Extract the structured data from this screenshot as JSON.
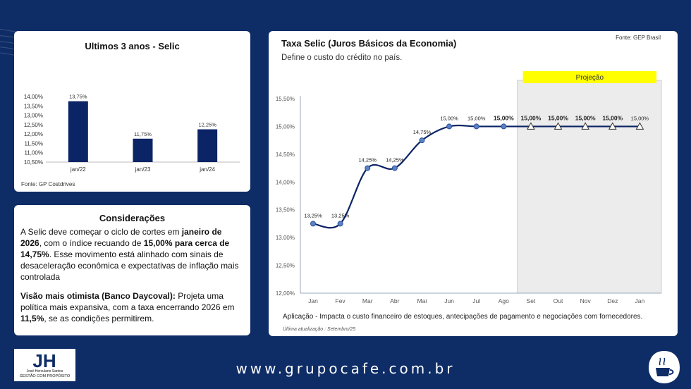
{
  "bar_card": {
    "title": "Ultimos 3 anos - Selic",
    "source": "Fonte: GP Costdrives"
  },
  "considerations": {
    "title": "Considerações",
    "p1_a": "A Selic deve começar o ciclo de cortes em ",
    "p1_b": "janeiro de 2026",
    "p1_c": ", com o índice recuando de ",
    "p1_d": "15,00% para cerca de 14,75%",
    "p1_e": ". Esse movimento está alinhado com sinais de desaceleração econômica e expectativas de inflação mais controlada",
    "p2_a": "Visão mais otimista (Banco Daycoval):",
    "p2_b": " Projeta uma política mais expansiva, com a taxa encerrando 2026 em ",
    "p2_c": "11,5%",
    "p2_d": ", se as condições permitirem."
  },
  "line_card": {
    "title": "Taxa Selic (Juros Básicos da Economia)",
    "subtitle": "Define o custo do crédito no país.",
    "source": "Fonte: GEP Brasil",
    "projection_label": "Projeção",
    "application": "Aplicação - Impacta o custo financeiro de estoques, antecipações de pagamento e negociações com fornecedores.",
    "updated": "Última atualização : Setembro/25"
  },
  "footer": {
    "url": "www.grupocafe.com.br",
    "logo_mark": "JH",
    "logo_name": "José Herculano Santos",
    "logo_tagline": "GESTÃO COM PROPÓSITO"
  },
  "colors": {
    "background": "#0e2c66",
    "bar": "#0b2466",
    "line": "#0b2466",
    "marker": "#5b82c8",
    "projection_fill": "#ececec",
    "projection_label_bg": "#ffff00"
  },
  "chart_data": [
    {
      "type": "bar",
      "title": "Ultimos 3 anos - Selic",
      "categories": [
        "jan/22",
        "jan/23",
        "jan/24"
      ],
      "values": [
        13.75,
        11.75,
        12.25
      ],
      "value_labels": [
        "13,75%",
        "11,75%",
        "12,25%"
      ],
      "ylim": [
        10.5,
        14.0
      ],
      "yticks": [
        "14,00%",
        "13,50%",
        "13,00%",
        "12,50%",
        "12,00%",
        "11,50%",
        "11,00%",
        "10,50%"
      ],
      "grid": false,
      "legend": "none"
    },
    {
      "type": "line",
      "title": "Taxa Selic (Juros Básicos da Economia)",
      "categories": [
        "Jan",
        "Fev",
        "Mar",
        "Abr",
        "Mai",
        "Jun",
        "Jul",
        "Ago",
        "Set",
        "Out",
        "Nov",
        "Dez",
        "Jan"
      ],
      "values": [
        13.25,
        13.25,
        14.25,
        14.25,
        14.75,
        15.0,
        15.0,
        15.0,
        15.0,
        15.0,
        15.0,
        15.0,
        15.0
      ],
      "value_labels": [
        "13,25%",
        "13,25%",
        "14,25%",
        "14,25%",
        "14,75%",
        "15,00%",
        "15,00%",
        "15,00%",
        "15,00%",
        "15,00%",
        "15,00%",
        "15,00%",
        "15,00%"
      ],
      "bold_labels_from_index": 7,
      "bold_labels_to_index": 11,
      "projection_from_index": 8,
      "ylim": [
        12.0,
        15.5
      ],
      "yticks": [
        "15,50%",
        "15,00%",
        "14,50%",
        "14,00%",
        "13,50%",
        "13,00%",
        "12,50%",
        "12,00%"
      ],
      "grid": false,
      "legend": "none"
    }
  ]
}
